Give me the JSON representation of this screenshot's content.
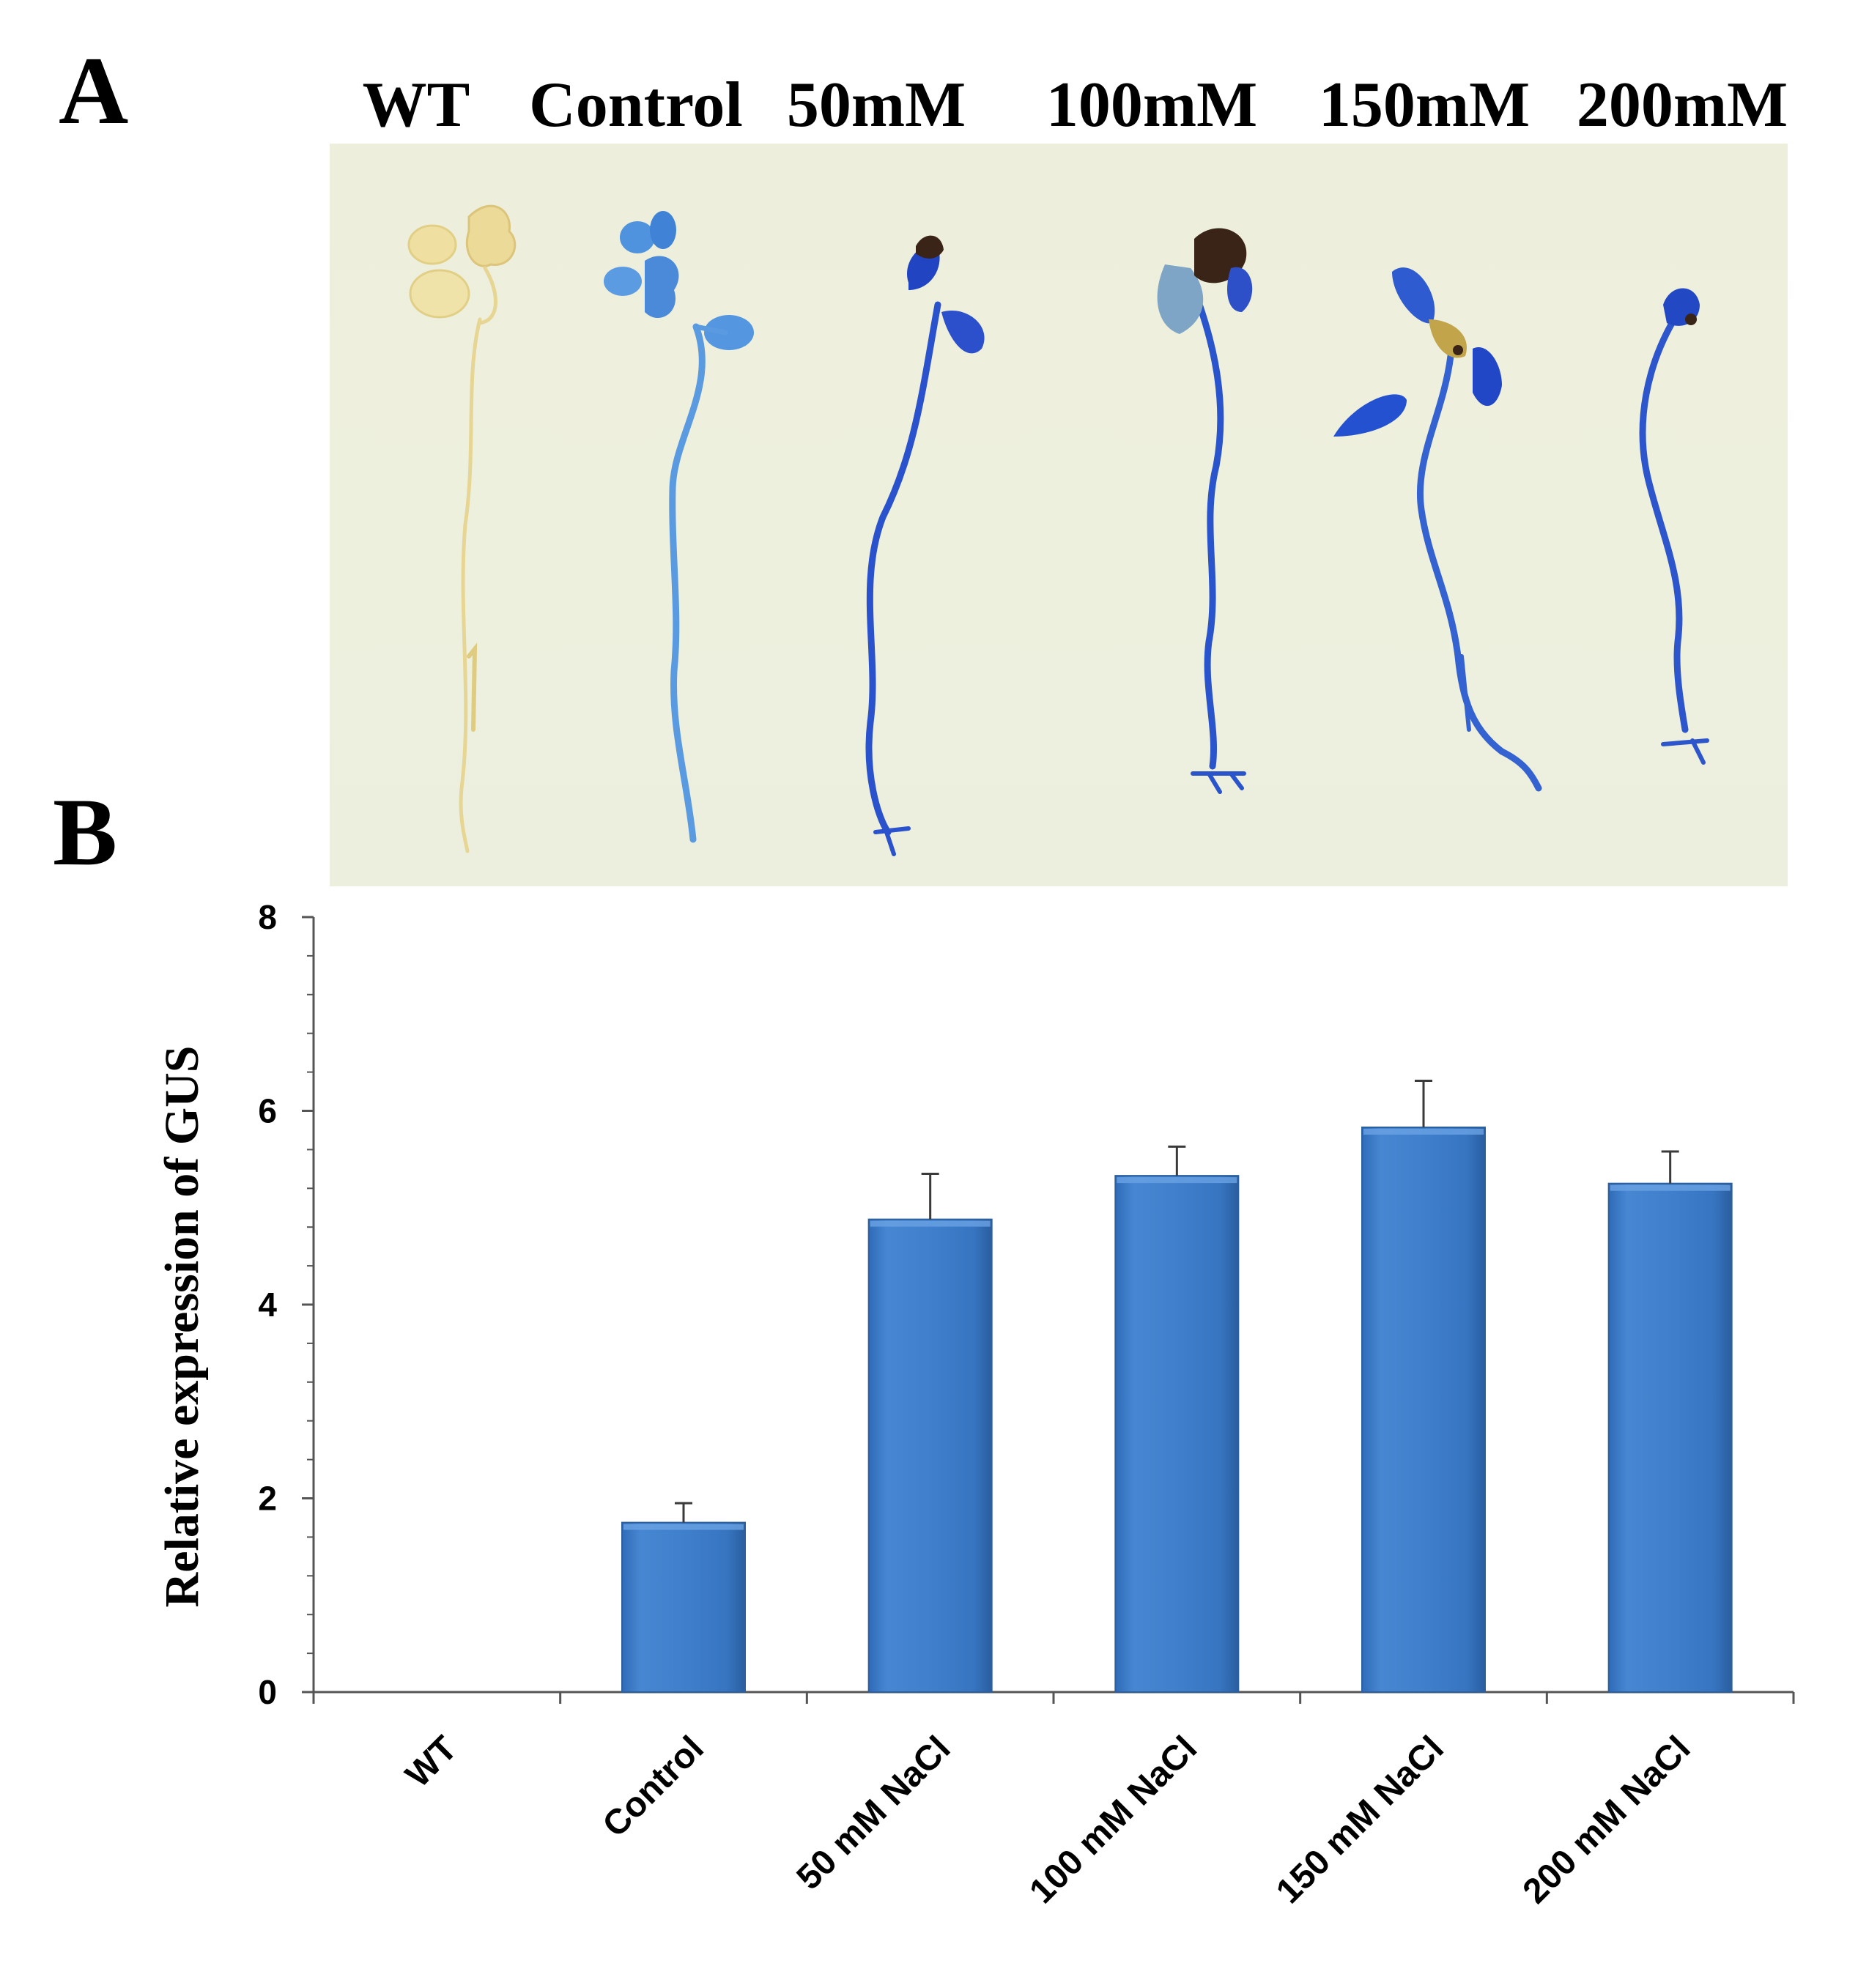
{
  "panel_a": {
    "letter": "A",
    "column_labels": [
      "WT",
      "Control",
      "50mM",
      "100mM",
      "150mM",
      "200mM"
    ],
    "colors": {
      "wt_seedling": "#e9d99a",
      "stain_light": "#4c8fdc",
      "stain_dark": "#1c3fc4",
      "necrotic": "#3a2418"
    }
  },
  "panel_b": {
    "letter": "B"
  },
  "chart_data": {
    "type": "bar",
    "title": "",
    "xlabel": "",
    "ylabel": "Relative expression of GUS",
    "categories": [
      "WT",
      "Control",
      "50 mM NaCl",
      "100 mM NaCl",
      "150 mM NaCl",
      "200 mM NaCl"
    ],
    "values": [
      0,
      1.75,
      4.88,
      5.33,
      5.83,
      5.25
    ],
    "errors": [
      0,
      0.2,
      0.47,
      0.3,
      0.48,
      0.33
    ],
    "ylim": [
      0,
      8
    ],
    "yticks": [
      0,
      2,
      4,
      6,
      8
    ],
    "grid": false,
    "legend": "none",
    "bar_color": "#3f7fcb",
    "bar_edge_color": "#2b5f9e"
  }
}
